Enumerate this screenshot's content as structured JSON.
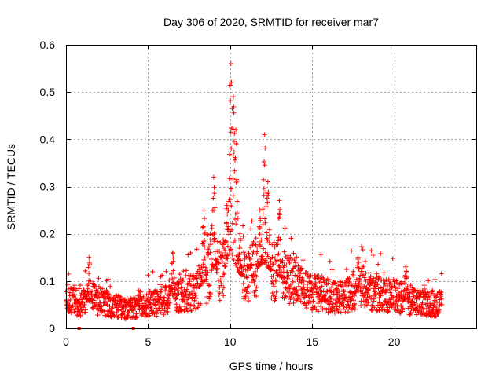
{
  "chart_data": {
    "type": "scatter",
    "title": "Day 306 of 2020, SRMTID for receiver mar7",
    "xlabel": "GPS time / hours",
    "ylabel": "SRMTID / TECUs",
    "xlim": [
      0,
      25
    ],
    "ylim": [
      0,
      0.6
    ],
    "grid": true,
    "marker": "+",
    "x_ticks": [
      0,
      5,
      10,
      15,
      20
    ],
    "x_tick_labels": [
      "0",
      "5",
      "10",
      "15",
      "20"
    ],
    "y_ticks": [
      0,
      0.1,
      0.2,
      0.3,
      0.4,
      0.5,
      0.6
    ],
    "y_tick_labels": [
      "0",
      "0.1",
      "0.2",
      "0.3",
      "0.4",
      "0.5",
      "0.6"
    ],
    "colors": {
      "series": "#ff0000",
      "axes": "#000000",
      "grid": "#a0a0a0",
      "background": "#ffffff"
    },
    "series": [
      {
        "name": "SRMTID",
        "trend": [
          [
            0.0,
            0.06
          ],
          [
            0.5,
            0.055
          ],
          [
            1.0,
            0.05
          ],
          [
            1.5,
            0.06
          ],
          [
            2.0,
            0.055
          ],
          [
            2.5,
            0.05
          ],
          [
            3.0,
            0.045
          ],
          [
            3.5,
            0.04
          ],
          [
            4.0,
            0.04
          ],
          [
            4.5,
            0.045
          ],
          [
            5.0,
            0.05
          ],
          [
            5.5,
            0.05
          ],
          [
            6.0,
            0.055
          ],
          [
            6.5,
            0.07
          ],
          [
            7.0,
            0.065
          ],
          [
            7.5,
            0.07
          ],
          [
            8.0,
            0.08
          ],
          [
            8.5,
            0.1
          ],
          [
            9.0,
            0.13
          ],
          [
            9.5,
            0.11
          ],
          [
            10.0,
            0.16
          ],
          [
            10.5,
            0.12
          ],
          [
            11.0,
            0.1
          ],
          [
            11.5,
            0.12
          ],
          [
            12.0,
            0.14
          ],
          [
            12.5,
            0.12
          ],
          [
            13.0,
            0.11
          ],
          [
            13.5,
            0.1
          ],
          [
            14.0,
            0.09
          ],
          [
            14.5,
            0.08
          ],
          [
            15.0,
            0.07
          ],
          [
            15.5,
            0.07
          ],
          [
            16.0,
            0.065
          ],
          [
            16.5,
            0.06
          ],
          [
            17.0,
            0.065
          ],
          [
            17.5,
            0.075
          ],
          [
            18.0,
            0.08
          ],
          [
            18.5,
            0.075
          ],
          [
            19.0,
            0.07
          ],
          [
            19.5,
            0.065
          ],
          [
            20.0,
            0.065
          ],
          [
            20.5,
            0.06
          ],
          [
            21.0,
            0.055
          ],
          [
            21.5,
            0.05
          ],
          [
            22.0,
            0.05
          ],
          [
            22.5,
            0.05
          ],
          [
            22.9,
            0.05
          ]
        ],
        "peaks": [
          {
            "x": 8.4,
            "y": 0.25
          },
          {
            "x": 9.0,
            "y": 0.32
          },
          {
            "x": 9.8,
            "y": 0.26
          },
          {
            "x": 10.05,
            "y": 0.56
          },
          {
            "x": 10.2,
            "y": 0.49
          },
          {
            "x": 10.35,
            "y": 0.42
          },
          {
            "x": 10.6,
            "y": 0.2
          },
          {
            "x": 11.8,
            "y": 0.25
          },
          {
            "x": 12.1,
            "y": 0.41
          },
          {
            "x": 12.3,
            "y": 0.31
          },
          {
            "x": 13.0,
            "y": 0.27
          },
          {
            "x": 6.5,
            "y": 0.16
          },
          {
            "x": 1.4,
            "y": 0.15
          },
          {
            "x": 17.8,
            "y": 0.15
          },
          {
            "x": 20.7,
            "y": 0.13
          }
        ],
        "outliers_at_zero": [
          0.8,
          4.1
        ]
      }
    ]
  }
}
